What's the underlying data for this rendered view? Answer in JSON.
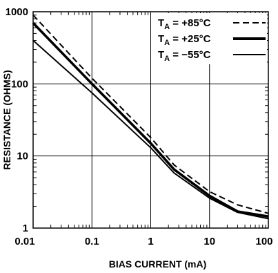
{
  "chart_data": {
    "type": "line",
    "xlabel": "BIAS CURRENT  (mA)",
    "ylabel": "RESISTANCE (OHMS)",
    "x_scale": "log",
    "y_scale": "log",
    "xlim": [
      0.01,
      100
    ],
    "ylim": [
      1,
      1000
    ],
    "grid": true,
    "legend_position": "top-right",
    "x_ticks": [
      {
        "value": 0.01,
        "label": "0.01"
      },
      {
        "value": 0.1,
        "label": "0.1"
      },
      {
        "value": 1,
        "label": "1"
      },
      {
        "value": 10,
        "label": "10"
      },
      {
        "value": 100,
        "label": "100"
      }
    ],
    "y_ticks": [
      {
        "value": 1,
        "label": "1"
      },
      {
        "value": 10,
        "label": "10"
      },
      {
        "value": 100,
        "label": "100"
      },
      {
        "value": 1000,
        "label": "1000"
      }
    ],
    "series": [
      {
        "name_main": "T",
        "name_sub": "A",
        "name_rest": " = +85°C",
        "style": "dashed",
        "color": "#000000",
        "x": [
          0.01,
          0.1,
          1,
          2.5,
          10,
          30,
          100
        ],
        "y": [
          900,
          120,
          18,
          7.5,
          3.2,
          2.1,
          1.6
        ]
      },
      {
        "name_main": "T",
        "name_sub": "A",
        "name_rest": " = +25°C",
        "style": "thick",
        "color": "#000000",
        "x": [
          0.01,
          0.1,
          1,
          2.5,
          10,
          30,
          100
        ],
        "y": [
          700,
          100,
          15,
          6.5,
          2.8,
          1.7,
          1.45
        ]
      },
      {
        "name_main": "T",
        "name_sub": "A",
        "name_rest": " = −55°C",
        "style": "solid",
        "color": "#000000",
        "x": [
          0.01,
          0.1,
          1,
          2.5,
          10,
          30,
          100
        ],
        "y": [
          400,
          75,
          13,
          5.8,
          2.6,
          1.65,
          1.35
        ]
      }
    ]
  }
}
